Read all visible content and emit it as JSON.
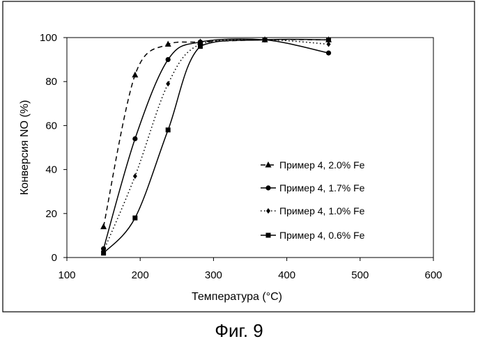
{
  "figure_caption": "Фиг. 9",
  "chart_data": {
    "type": "line",
    "xlabel": "Температура (°C)",
    "ylabel": "Конверсия NO (%)",
    "xlim": [
      100,
      600
    ],
    "ylim": [
      0,
      100
    ],
    "xticks": [
      100,
      200,
      300,
      400,
      500,
      600
    ],
    "yticks": [
      0,
      20,
      40,
      60,
      80,
      100
    ],
    "grid": false,
    "legend_position": "right-center",
    "series": [
      {
        "name": "Пример 4, 2.0% Fe",
        "marker": "triangle",
        "line": "dashed",
        "x": [
          150,
          193,
          238,
          282,
          370,
          457
        ],
        "y": [
          14,
          83,
          97,
          98,
          99,
          99
        ]
      },
      {
        "name": "Пример 4, 1.7% Fe",
        "marker": "circle",
        "line": "solid",
        "x": [
          150,
          193,
          238,
          282,
          370,
          457
        ],
        "y": [
          4,
          54,
          90,
          98,
          99,
          93
        ]
      },
      {
        "name": "Пример 4, 1.0% Fe",
        "marker": "diamond",
        "line": "dotted",
        "x": [
          150,
          193,
          238,
          282,
          370,
          457
        ],
        "y": [
          3,
          37,
          79,
          97,
          99,
          97
        ]
      },
      {
        "name": "Пример 4, 0.6% Fe",
        "marker": "square",
        "line": "solid",
        "x": [
          150,
          193,
          238,
          282,
          370,
          457
        ],
        "y": [
          2,
          18,
          58,
          96,
          99,
          99
        ]
      }
    ]
  }
}
